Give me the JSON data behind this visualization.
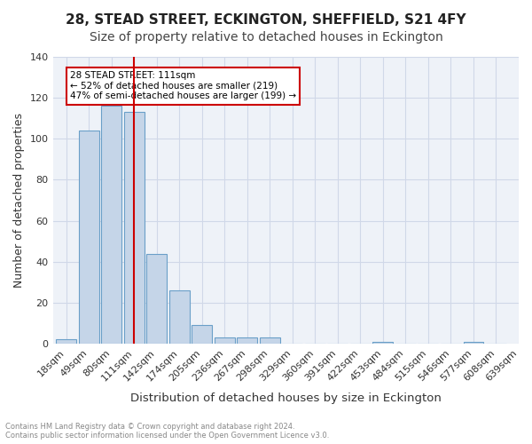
{
  "title": "28, STEAD STREET, ECKINGTON, SHEFFIELD, S21 4FY",
  "subtitle": "Size of property relative to detached houses in Eckington",
  "xlabel": "Distribution of detached houses by size in Eckington",
  "ylabel": "Number of detached properties",
  "bar_labels": [
    "18sqm",
    "49sqm",
    "80sqm",
    "111sqm",
    "142sqm",
    "174sqm",
    "205sqm",
    "236sqm",
    "267sqm",
    "298sqm",
    "329sqm",
    "360sqm",
    "391sqm",
    "422sqm",
    "453sqm",
    "484sqm",
    "515sqm",
    "546sqm",
    "577sqm",
    "608sqm"
  ],
  "bar_heights": [
    2,
    104,
    116,
    113,
    44,
    26,
    9,
    3,
    3,
    3,
    0,
    0,
    0,
    0,
    1,
    0,
    0,
    0,
    1,
    0
  ],
  "extra_label": "639sqm",
  "bar_color": "#c5d5e8",
  "bar_edge_color": "#6a9fc8",
  "property_line_x": 3,
  "annotation_text": "28 STEAD STREET: 111sqm\n← 52% of detached houses are smaller (219)\n47% of semi-detached houses are larger (199) →",
  "annotation_box_color": "#ffffff",
  "annotation_edge_color": "#cc0000",
  "vline_color": "#cc0000",
  "ylim": [
    0,
    140
  ],
  "yticks": [
    0,
    20,
    40,
    60,
    80,
    100,
    120,
    140
  ],
  "grid_color": "#d0d8e8",
  "background_color": "#eef2f8",
  "footer_line1": "Contains HM Land Registry data © Crown copyright and database right 2024.",
  "footer_line2": "Contains public sector information licensed under the Open Government Licence v3.0.",
  "title_fontsize": 11,
  "subtitle_fontsize": 10,
  "axis_label_fontsize": 9,
  "tick_fontsize": 8
}
